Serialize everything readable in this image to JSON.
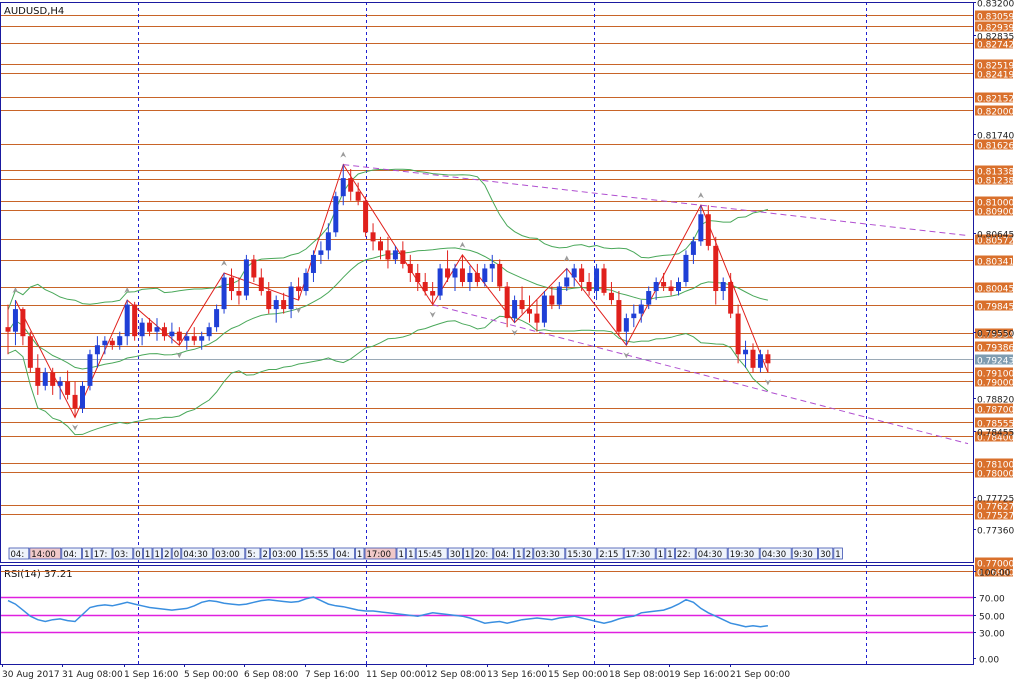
{
  "chart_data": [
    {
      "type": "candlestick",
      "title": "AUDUSD,H4",
      "ylim": [
        0.77,
        0.832
      ],
      "colors": {
        "up": "#1f3fd6",
        "down": "#e0201c",
        "hline": "#c86428",
        "bands": "#4aa85a",
        "trend": "#b04fd0",
        "zigzag": "#e0201c",
        "axis": "#1a1aa0",
        "grid_v": "#2020d0",
        "price_label_bg": "#d9702c",
        "current_label_bg": "#7f9cb0"
      },
      "price_ticks": [
        "0.83200",
        "0.82835",
        "0.81740",
        "0.80645",
        "0.79550",
        "0.78820",
        "0.78455",
        "0.77725",
        "0.77360"
      ],
      "levels": [
        "0.83059",
        "0.82939",
        "0.82742",
        "0.82519",
        "0.82419",
        "0.82152",
        "0.82000",
        "0.81626",
        "0.81338",
        "0.81238",
        "0.81000",
        "0.80900",
        "0.80572",
        "0.80341",
        "0.80045",
        "0.79845",
        "0.79534",
        "0.79386",
        "0.79100",
        "0.79000",
        "0.78700",
        "0.78555",
        "0.78400",
        "0.78100",
        "0.78000",
        "0.77627",
        "0.77527",
        "0.77000",
        "0.76900"
      ],
      "current_price": "0.79243",
      "x_labels": [
        "30 Aug 2017",
        "31 Aug 08:00",
        "1 Sep 16:00",
        "5 Sep 00:00",
        "6 Sep 08:00",
        "7 Sep 16:00",
        "11 Sep 00:00",
        "12 Sep 08:00",
        "13 Sep 16:00",
        "15 Sep 00:00",
        "18 Sep 08:00",
        "19 Sep 16:00",
        "21 Sep 00:00"
      ],
      "candles": [
        [
          0.796,
          0.7985,
          0.793,
          0.7955
        ],
        [
          0.7955,
          0.799,
          0.794,
          0.798
        ],
        [
          0.798,
          0.7982,
          0.794,
          0.795
        ],
        [
          0.795,
          0.7955,
          0.791,
          0.7915
        ],
        [
          0.7915,
          0.793,
          0.7885,
          0.7895
        ],
        [
          0.7895,
          0.7915,
          0.789,
          0.791
        ],
        [
          0.791,
          0.7915,
          0.7885,
          0.7895
        ],
        [
          0.7895,
          0.7905,
          0.788,
          0.79
        ],
        [
          0.79,
          0.7912,
          0.788,
          0.7885
        ],
        [
          0.7885,
          0.79,
          0.786,
          0.787
        ],
        [
          0.787,
          0.79,
          0.7865,
          0.7895
        ],
        [
          0.7895,
          0.7935,
          0.789,
          0.793
        ],
        [
          0.793,
          0.795,
          0.7915,
          0.794
        ],
        [
          0.794,
          0.795,
          0.793,
          0.7945
        ],
        [
          0.7945,
          0.7948,
          0.7935,
          0.794
        ],
        [
          0.794,
          0.7955,
          0.7935,
          0.795
        ],
        [
          0.795,
          0.799,
          0.794,
          0.7985
        ],
        [
          0.7985,
          0.7988,
          0.7945,
          0.795
        ],
        [
          0.795,
          0.797,
          0.794,
          0.7965
        ],
        [
          0.7965,
          0.797,
          0.795,
          0.7955
        ],
        [
          0.7955,
          0.797,
          0.7945,
          0.796
        ],
        [
          0.796,
          0.7965,
          0.7945,
          0.795
        ],
        [
          0.795,
          0.7965,
          0.7942,
          0.7955
        ],
        [
          0.7955,
          0.796,
          0.794,
          0.7945
        ],
        [
          0.7945,
          0.7955,
          0.7935,
          0.795
        ],
        [
          0.795,
          0.796,
          0.794,
          0.7945
        ],
        [
          0.7945,
          0.7955,
          0.7935,
          0.795
        ],
        [
          0.795,
          0.7965,
          0.7945,
          0.796
        ],
        [
          0.796,
          0.7985,
          0.7955,
          0.798
        ],
        [
          0.798,
          0.802,
          0.7975,
          0.8015
        ],
        [
          0.8015,
          0.8025,
          0.799,
          0.8
        ],
        [
          0.8,
          0.8015,
          0.7985,
          0.7995
        ],
        [
          0.7995,
          0.804,
          0.799,
          0.8035
        ],
        [
          0.8035,
          0.804,
          0.801,
          0.8015
        ],
        [
          0.8015,
          0.8025,
          0.7995,
          0.8
        ],
        [
          0.8,
          0.801,
          0.7975,
          0.798
        ],
        [
          0.798,
          0.7995,
          0.7965,
          0.799
        ],
        [
          0.799,
          0.7998,
          0.7975,
          0.798
        ],
        [
          0.798,
          0.801,
          0.797,
          0.8005
        ],
        [
          0.8005,
          0.8015,
          0.799,
          0.8
        ],
        [
          0.8,
          0.8025,
          0.7995,
          0.802
        ],
        [
          0.802,
          0.8045,
          0.801,
          0.804
        ],
        [
          0.804,
          0.8055,
          0.803,
          0.8045
        ],
        [
          0.8045,
          0.8075,
          0.8035,
          0.8065
        ],
        [
          0.8065,
          0.811,
          0.806,
          0.8105
        ],
        [
          0.8105,
          0.814,
          0.8095,
          0.8125
        ],
        [
          0.8125,
          0.8135,
          0.81,
          0.811
        ],
        [
          0.811,
          0.812,
          0.8095,
          0.81
        ],
        [
          0.81,
          0.8105,
          0.806,
          0.8065
        ],
        [
          0.8065,
          0.8075,
          0.8045,
          0.8055
        ],
        [
          0.8055,
          0.806,
          0.8035,
          0.8045
        ],
        [
          0.8045,
          0.806,
          0.8025,
          0.8035
        ],
        [
          0.8035,
          0.805,
          0.803,
          0.8045
        ],
        [
          0.8045,
          0.8055,
          0.8025,
          0.803
        ],
        [
          0.803,
          0.804,
          0.801,
          0.802
        ],
        [
          0.802,
          0.803,
          0.8,
          0.801
        ],
        [
          0.801,
          0.802,
          0.7995,
          0.8
        ],
        [
          0.8,
          0.801,
          0.7985,
          0.7995
        ],
        [
          0.7995,
          0.803,
          0.799,
          0.8025
        ],
        [
          0.8025,
          0.8045,
          0.801,
          0.8015
        ],
        [
          0.8015,
          0.803,
          0.8,
          0.8025
        ],
        [
          0.8025,
          0.804,
          0.8005,
          0.801
        ],
        [
          0.801,
          0.8028,
          0.8,
          0.802
        ],
        [
          0.802,
          0.803,
          0.8005,
          0.801
        ],
        [
          0.801,
          0.803,
          0.8005,
          0.8025
        ],
        [
          0.8025,
          0.804,
          0.801,
          0.803
        ],
        [
          0.803,
          0.8035,
          0.8,
          0.8005
        ],
        [
          0.8005,
          0.801,
          0.796,
          0.797
        ],
        [
          0.797,
          0.7995,
          0.7965,
          0.799
        ],
        [
          0.799,
          0.8005,
          0.7975,
          0.798
        ],
        [
          0.798,
          0.7995,
          0.7965,
          0.7975
        ],
        [
          0.7975,
          0.799,
          0.7955,
          0.7965
        ],
        [
          0.7965,
          0.8,
          0.796,
          0.7995
        ],
        [
          0.7995,
          0.8005,
          0.798,
          0.7985
        ],
        [
          0.7985,
          0.801,
          0.798,
          0.8005
        ],
        [
          0.8005,
          0.8025,
          0.8,
          0.8015
        ],
        [
          0.8015,
          0.803,
          0.8005,
          0.8025
        ],
        [
          0.8025,
          0.803,
          0.8,
          0.801
        ],
        [
          0.801,
          0.802,
          0.7995,
          0.8
        ],
        [
          0.8,
          0.803,
          0.799,
          0.8025
        ],
        [
          0.8025,
          0.803,
          0.7995,
          0.7998
        ],
        [
          0.7998,
          0.801,
          0.7985,
          0.799
        ],
        [
          0.799,
          0.8,
          0.795,
          0.7955
        ],
        [
          0.7955,
          0.7975,
          0.794,
          0.797
        ],
        [
          0.797,
          0.7985,
          0.796,
          0.7975
        ],
        [
          0.7975,
          0.799,
          0.7965,
          0.7985
        ],
        [
          0.7985,
          0.8005,
          0.798,
          0.8
        ],
        [
          0.8,
          0.8015,
          0.799,
          0.801
        ],
        [
          0.801,
          0.802,
          0.8,
          0.8005
        ],
        [
          0.8005,
          0.8012,
          0.7995,
          0.8
        ],
        [
          0.8,
          0.8015,
          0.7995,
          0.801
        ],
        [
          0.801,
          0.8045,
          0.8005,
          0.804
        ],
        [
          0.804,
          0.806,
          0.803,
          0.8055
        ],
        [
          0.8055,
          0.8095,
          0.805,
          0.8085
        ],
        [
          0.8085,
          0.8095,
          0.8045,
          0.805
        ],
        [
          0.805,
          0.806,
          0.7985,
          0.8
        ],
        [
          0.8,
          0.8015,
          0.799,
          0.801
        ],
        [
          0.801,
          0.802,
          0.797,
          0.7975
        ],
        [
          0.7975,
          0.7985,
          0.792,
          0.793
        ],
        [
          0.793,
          0.7945,
          0.7915,
          0.7935
        ],
        [
          0.7935,
          0.7942,
          0.791,
          0.7915
        ],
        [
          0.7915,
          0.7935,
          0.791,
          0.793
        ],
        [
          0.793,
          0.7935,
          0.791,
          0.792
        ]
      ]
    },
    {
      "type": "line",
      "title": "RSI(14) 37.21",
      "ylim": [
        0,
        100
      ],
      "yticks": [
        "100.00",
        "70.00",
        "50.00",
        "30.00",
        "0.00"
      ],
      "levels": [
        70,
        50,
        30
      ],
      "colors": {
        "line": "#3a8fe0",
        "levels": "#e020e0"
      },
      "values": [
        66,
        62,
        55,
        48,
        44,
        42,
        44,
        45,
        43,
        42,
        50,
        58,
        60,
        61,
        60,
        62,
        64,
        62,
        60,
        58,
        57,
        56,
        55,
        56,
        57,
        60,
        64,
        66,
        65,
        63,
        62,
        61,
        62,
        64,
        66,
        67,
        66,
        65,
        64,
        65,
        68,
        70,
        66,
        62,
        60,
        59,
        57,
        55,
        54,
        54,
        53,
        52,
        51,
        50,
        49,
        48,
        50,
        52,
        51,
        50,
        49,
        48,
        46,
        43,
        40,
        41,
        42,
        40,
        42,
        44,
        45,
        46,
        45,
        44,
        46,
        47,
        48,
        46,
        44,
        42,
        40,
        42,
        45,
        47,
        48,
        52,
        53,
        54,
        55,
        58,
        62,
        67,
        64,
        57,
        52,
        48,
        44,
        40,
        38,
        36,
        37,
        36,
        37
      ]
    }
  ],
  "toolbar_tags": [
    "04:",
    "14:00",
    "04:",
    "1",
    "17:",
    "03:",
    "0",
    "1",
    "1",
    "2",
    "0",
    "04:30",
    "03:00",
    "5:",
    "2",
    "03:00",
    "15:55",
    "04:",
    "1",
    "17:00",
    "1",
    "1",
    "15:45",
    "30",
    "1",
    "20:",
    "04:",
    "1",
    "2",
    "03:30",
    "15:30",
    "2:15",
    "17:30",
    "1",
    "1",
    "22:",
    "04:30",
    "19:30",
    "04:30",
    "9:30",
    "30",
    "1",
    "21:",
    "0",
    "08:10",
    "30",
    "04:30",
    "1",
    "22:30"
  ]
}
